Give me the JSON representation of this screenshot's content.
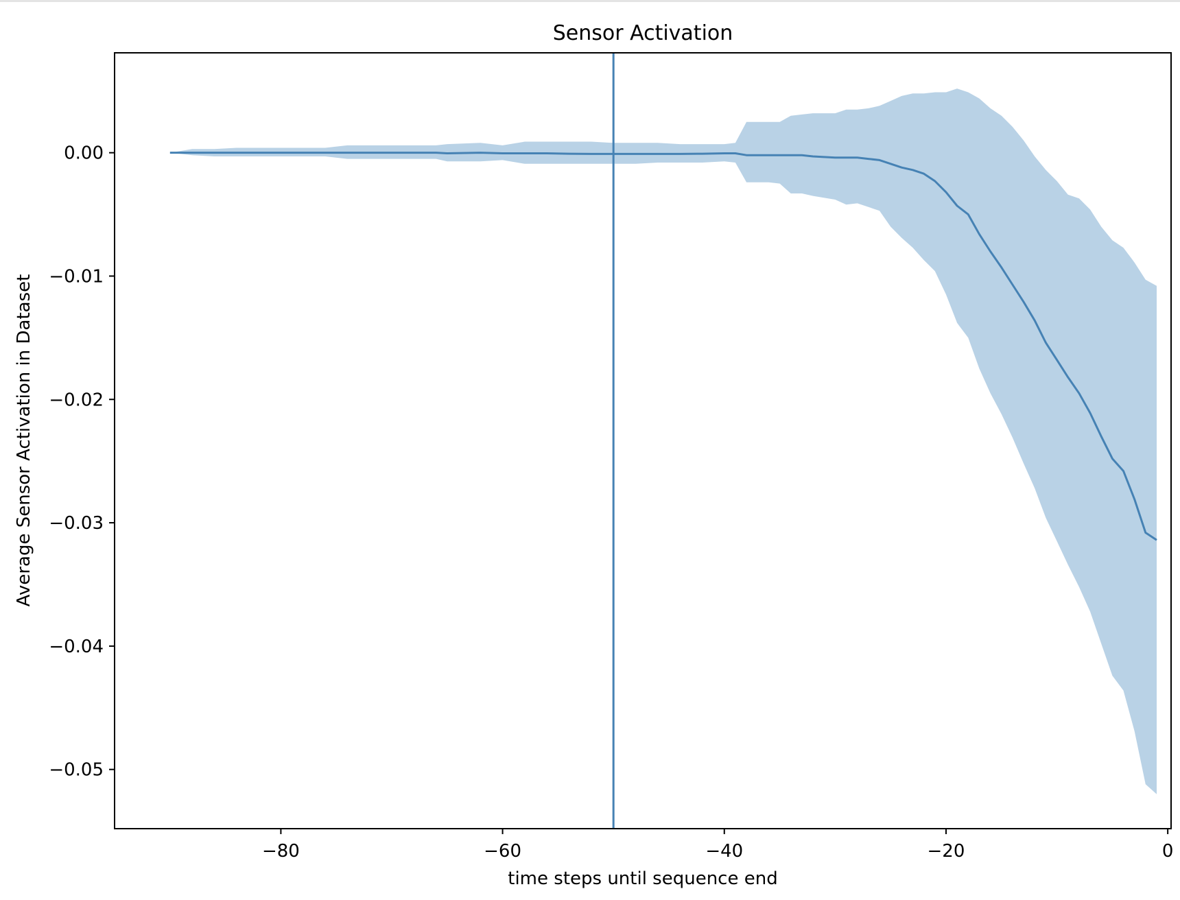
{
  "chart_data": {
    "type": "line",
    "title": "Sensor Activation",
    "xlabel": "time steps until sequence end",
    "ylabel": "Average Sensor Activation in Dataset",
    "xlim": [
      -95,
      0.3
    ],
    "ylim": [
      -0.0548,
      0.0081
    ],
    "xticks": [
      -80,
      -60,
      -40,
      -20,
      0
    ],
    "xtick_labels": [
      "−80",
      "−60",
      "−40",
      "−20",
      "0"
    ],
    "yticks": [
      0.0,
      -0.01,
      -0.02,
      -0.03,
      -0.04,
      -0.05
    ],
    "ytick_labels": [
      "0.00",
      "−0.01",
      "−0.02",
      "−0.03",
      "−0.04",
      "−0.05"
    ],
    "grid": false,
    "color": "#4682b4",
    "band_color": "#b9d2e6",
    "vline_x": -50,
    "series": [
      {
        "x": [
          -90,
          -88,
          -86,
          -84,
          -82,
          -80,
          -78,
          -76,
          -74,
          -72,
          -70,
          -68,
          -66,
          -65,
          -62,
          -60,
          -58,
          -56,
          -54,
          -52,
          -50,
          -48,
          -46,
          -44,
          -42,
          -40,
          -39,
          -38,
          -36,
          -35,
          -34,
          -33,
          -32,
          -30,
          -29,
          -28,
          -27,
          -26,
          -25,
          -24,
          -23,
          -22,
          -21,
          -20,
          -19,
          -18,
          -17,
          -16,
          -15,
          -14,
          -13,
          -12,
          -11,
          -10,
          -9,
          -8,
          -7,
          -6,
          -5,
          -4,
          -3,
          -2,
          -1
        ],
        "mean": [
          0.0,
          0.0,
          0.0,
          0.0,
          0.0,
          0.0,
          0.0,
          0.0,
          0.0,
          0.0,
          0.0,
          0.0,
          0.0,
          -5e-05,
          0.0,
          -5e-05,
          -5e-05,
          -5e-05,
          -8e-05,
          -0.0001,
          -0.0001,
          -0.0001,
          -0.0001,
          -0.0001,
          -8e-05,
          -5e-05,
          -5e-05,
          -0.0002,
          -0.0002,
          -0.0002,
          -0.0002,
          -0.0002,
          -0.0003,
          -0.0004,
          -0.0004,
          -0.0004,
          -0.0005,
          -0.0006,
          -0.0009,
          -0.0012,
          -0.0014,
          -0.0017,
          -0.0023,
          -0.0032,
          -0.0043,
          -0.005,
          -0.0066,
          -0.008,
          -0.0093,
          -0.0107,
          -0.0121,
          -0.0136,
          -0.0154,
          -0.0168,
          -0.0182,
          -0.0195,
          -0.0211,
          -0.023,
          -0.0248,
          -0.0258,
          -0.0281,
          -0.0308,
          -0.0314
        ],
        "upper": [
          0.0,
          0.0003,
          0.0003,
          0.0004,
          0.0004,
          0.0004,
          0.0004,
          0.0004,
          0.0006,
          0.0006,
          0.0006,
          0.0006,
          0.0006,
          0.0007,
          0.0008,
          0.0006,
          0.0009,
          0.0009,
          0.0009,
          0.0009,
          0.0008,
          0.0008,
          0.0008,
          0.0007,
          0.0007,
          0.0007,
          0.0008,
          0.0025,
          0.0025,
          0.0025,
          0.003,
          0.0031,
          0.0032,
          0.0032,
          0.0035,
          0.0035,
          0.0036,
          0.0038,
          0.0042,
          0.0046,
          0.0048,
          0.0048,
          0.0049,
          0.0049,
          0.0052,
          0.0049,
          0.0044,
          0.0036,
          0.003,
          0.0021,
          0.001,
          -0.0003,
          -0.0014,
          -0.0023,
          -0.0034,
          -0.0037,
          -0.0046,
          -0.006,
          -0.0071,
          -0.0077,
          -0.0089,
          -0.0103,
          -0.0108
        ],
        "lower": [
          0.0,
          -0.0002,
          -0.0003,
          -0.0003,
          -0.0003,
          -0.0003,
          -0.0003,
          -0.0003,
          -0.0005,
          -0.0005,
          -0.0005,
          -0.0005,
          -0.0005,
          -0.0007,
          -0.0007,
          -0.0006,
          -0.0009,
          -0.0009,
          -0.0009,
          -0.0009,
          -0.0009,
          -0.0009,
          -0.0008,
          -0.0008,
          -0.0008,
          -0.0007,
          -0.0008,
          -0.0024,
          -0.0024,
          -0.0025,
          -0.0033,
          -0.0033,
          -0.0035,
          -0.0038,
          -0.0042,
          -0.0041,
          -0.0044,
          -0.0047,
          -0.006,
          -0.0069,
          -0.0077,
          -0.0087,
          -0.0096,
          -0.0115,
          -0.0138,
          -0.015,
          -0.0175,
          -0.0195,
          -0.0212,
          -0.0231,
          -0.0252,
          -0.0272,
          -0.0296,
          -0.0315,
          -0.0334,
          -0.0352,
          -0.0372,
          -0.0398,
          -0.0424,
          -0.0436,
          -0.0469,
          -0.0512,
          -0.052
        ]
      }
    ]
  }
}
